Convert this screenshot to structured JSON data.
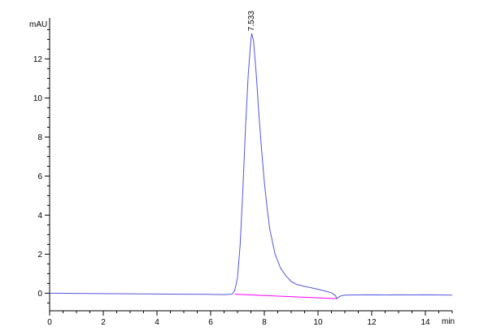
{
  "chart_data": {
    "type": "line",
    "title": "",
    "xlabel": "min",
    "ylabel": "mAU",
    "xlim": [
      0,
      15
    ],
    "ylim": [
      -0.9,
      14.1
    ],
    "x_ticks": [
      0,
      2,
      4,
      6,
      8,
      10,
      12,
      14
    ],
    "x_tick_labels": [
      "0",
      "2",
      "4",
      "6",
      "8",
      "10",
      "12",
      "14"
    ],
    "y_ticks": [
      0,
      2,
      4,
      6,
      8,
      10,
      12
    ],
    "y_tick_labels": [
      "0",
      "2",
      "4",
      "6",
      "8",
      "10",
      "12"
    ],
    "grid": false,
    "legend": "none",
    "series": [
      {
        "color": "#5555dd",
        "x": [
          0,
          1,
          2,
          3,
          4,
          5,
          6,
          6.5,
          6.8,
          6.9,
          7.0,
          7.1,
          7.2,
          7.3,
          7.4,
          7.5,
          7.533,
          7.6,
          7.7,
          7.8,
          7.9,
          8.0,
          8.1,
          8.2,
          8.4,
          8.6,
          8.8,
          9.0,
          9.2,
          9.5,
          9.8,
          10.0,
          10.3,
          10.5,
          10.65,
          10.7,
          10.75,
          10.85,
          11.0,
          11.5,
          12.0,
          12.5,
          13.0,
          13.5,
          14.0,
          14.5,
          15.0
        ],
        "y": [
          0.0,
          -0.01,
          -0.02,
          -0.03,
          -0.04,
          -0.05,
          -0.06,
          -0.07,
          -0.05,
          0.15,
          0.8,
          2.5,
          5.3,
          8.5,
          11.2,
          13.0,
          13.3,
          12.9,
          11.2,
          9.1,
          7.3,
          5.7,
          4.4,
          3.3,
          2.0,
          1.3,
          0.9,
          0.6,
          0.45,
          0.35,
          0.26,
          0.2,
          0.1,
          0.02,
          -0.12,
          -0.28,
          -0.22,
          -0.14,
          -0.1,
          -0.09,
          -0.08,
          -0.09,
          -0.08,
          -0.09,
          -0.08,
          -0.09,
          -0.1
        ]
      },
      {
        "color": "#ff00ff",
        "x": [
          6.9,
          10.7
        ],
        "y": [
          -0.05,
          -0.28
        ]
      }
    ],
    "annotations": [
      {
        "text": "7.533",
        "x": 7.533,
        "y": 13.3
      }
    ]
  }
}
